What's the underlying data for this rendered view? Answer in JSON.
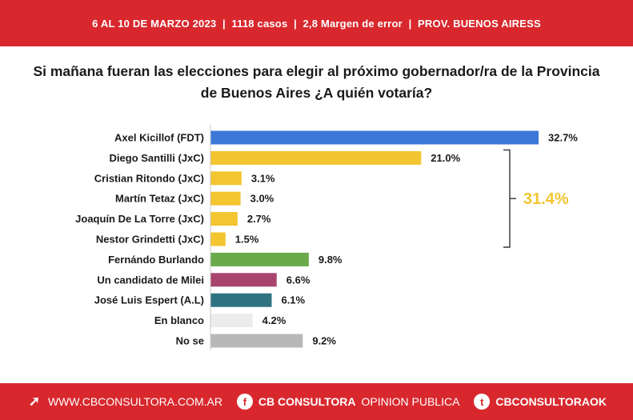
{
  "header": {
    "date": "6 AL 10 DE MARZO 2023",
    "cases": "1118 casos",
    "error": "2,8 Margen de error",
    "province": "PROV. BUENOS AIRESS"
  },
  "question": {
    "line1": "Si mañana fueran las elecciones para elegir al próximo gobernador/ra de la Provincia",
    "line2": "de Buenos Aires ¿A quién votaría?"
  },
  "chart_data": {
    "type": "bar",
    "orientation": "horizontal",
    "categories": [
      "Axel Kicillof (FDT)",
      "Diego Santilli (JxC)",
      "Cristian Ritondo (JxC)",
      "Martín Tetaz (JxC)",
      "Joaquín De La Torre (JxC)",
      "Nestor Grindetti (JxC)",
      "Fernándo Burlando",
      "Un candidato de Milei",
      "José Luis Espert (A.L)",
      "En blanco",
      "No se"
    ],
    "values": [
      32.7,
      21.0,
      3.1,
      3.0,
      2.7,
      1.5,
      9.8,
      6.6,
      6.1,
      4.2,
      9.2
    ],
    "value_labels": [
      "32.7%",
      "21.0%",
      "3.1%",
      "3.0%",
      "2.7%",
      "1.5%",
      "9.8%",
      "6.6%",
      "6.1%",
      "4.2%",
      "9.2%"
    ],
    "colors": [
      "#3b78d8",
      "#f2c531",
      "#f2c531",
      "#f2c531",
      "#f2c531",
      "#f2c531",
      "#6aaa4b",
      "#a8456f",
      "#2f7382",
      "#ececec",
      "#b8b8b8"
    ],
    "bracket": {
      "from_index": 1,
      "to_index": 5,
      "label": "31.4%",
      "color": "#f2c531"
    },
    "xlim": [
      0,
      35
    ],
    "grid": false,
    "legend": "none"
  },
  "footer": {
    "website": "WWW.CBCONSULTORA.COM.AR",
    "facebook_bold": "CB CONSULTORA",
    "facebook_rest": "OPINION PUBLICA",
    "twitter": "CBCONSULTORAOK",
    "icons": [
      "cursor-icon",
      "facebook-icon",
      "twitter-icon"
    ]
  }
}
